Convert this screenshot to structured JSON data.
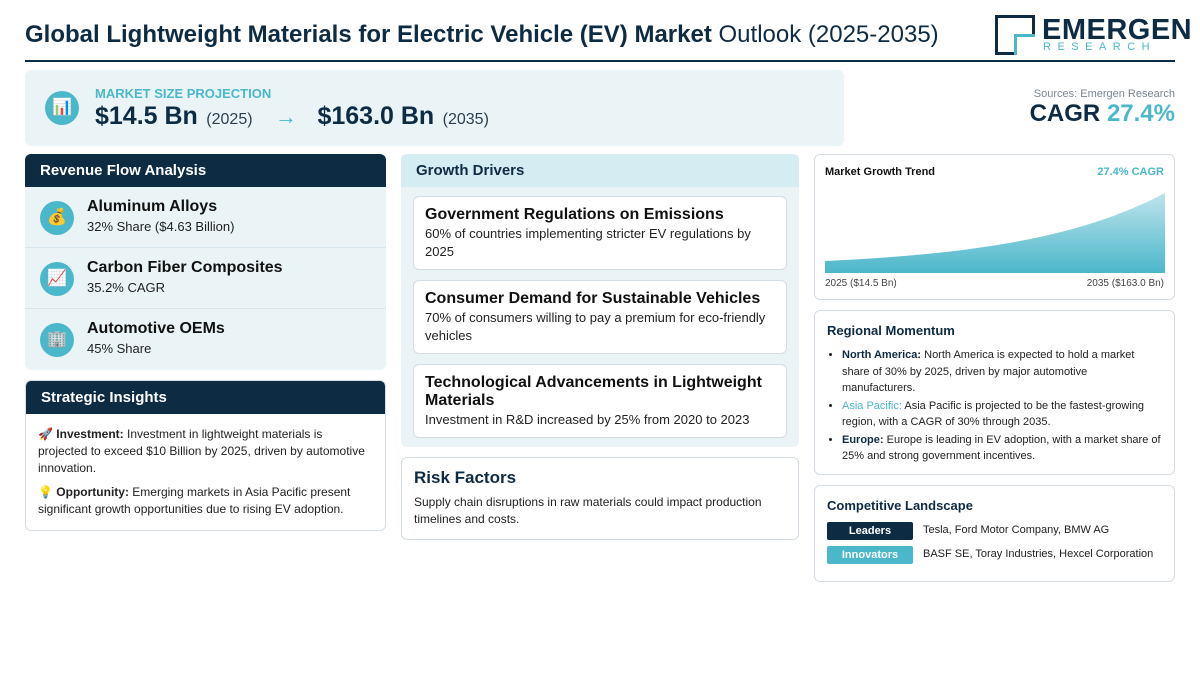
{
  "header": {
    "title_bold": "Global Lightweight Materials for Electric Vehicle (EV) Market",
    "title_rest": "Outlook (2025-2035)",
    "logo_name": "EMERGEN",
    "logo_sub": "RESEARCH"
  },
  "market": {
    "label": "MARKET SIZE PROJECTION",
    "icon": "bar-chart-icon",
    "start_value": "$14.5 Bn",
    "start_year": "(2025)",
    "arrow": "→",
    "end_value": "$163.0 Bn",
    "end_year": "(2035)"
  },
  "summary": {
    "sources": "Sources: Emergen Research",
    "cagr_label": "CAGR",
    "cagr_value": "27.4%"
  },
  "revenue": {
    "title": "Revenue Flow Analysis",
    "items": [
      {
        "icon": "money-bag-icon",
        "title": "Aluminum Alloys",
        "sub": "32% Share ($4.63 Billion)"
      },
      {
        "icon": "trend-chart-icon",
        "title": "Carbon Fiber Composites",
        "sub": "35.2% CAGR"
      },
      {
        "icon": "building-icon",
        "title": "Automotive OEMs",
        "sub": "45% Share"
      }
    ]
  },
  "insights": {
    "title": "Strategic Insights",
    "items": [
      {
        "icon": "rocket-icon",
        "label": "Investment:",
        "text": "Investment in lightweight materials is projected to exceed $10 Billion by 2025, driven by automotive innovation."
      },
      {
        "icon": "lightbulb-icon",
        "label": "Opportunity:",
        "text": "Emerging markets in Asia Pacific present significant growth opportunities due to rising EV adoption."
      }
    ]
  },
  "drivers": {
    "title": "Growth Drivers",
    "items": [
      {
        "title": "Government Regulations on Emissions",
        "desc": "60% of countries implementing stricter EV regulations by 2025"
      },
      {
        "title": "Consumer Demand for Sustainable Vehicles",
        "desc": "70% of consumers willing to pay a premium for eco-friendly vehicles"
      },
      {
        "title": "Technological Advancements in Lightweight Materials",
        "desc": "Investment in R&D increased by 25% from 2020 to 2023"
      }
    ]
  },
  "risk": {
    "title": "Risk Factors",
    "desc": "Supply chain disruptions in raw materials could impact production timelines and costs."
  },
  "trend": {
    "title": "Market Growth Trend",
    "cagr": "27.4% CAGR",
    "start_label": "2025 ($14.5 Bn)",
    "end_label": "2035 ($163.0 Bn)",
    "fill_color_top": "#bfe4ec",
    "fill_color_bottom": "#4bb7ca"
  },
  "chart_data": {
    "type": "area",
    "title": "Market Growth Trend",
    "x": [
      2025,
      2035
    ],
    "values": [
      14.5,
      163.0
    ],
    "unit": "Bn USD"
  },
  "regional": {
    "title": "Regional Momentum",
    "items": [
      {
        "label": "North America:",
        "text": "North America is expected to hold a market share of 30% by 2025, driven by major automotive manufacturers."
      },
      {
        "label": "Asia Pacific:",
        "text": "Asia Pacific is projected to be the fastest-growing region, with a CAGR of 30% through 2035."
      },
      {
        "label": "Europe:",
        "text": "Europe is leading in EV adoption, with a market share of 25% and strong government incentives."
      }
    ]
  },
  "competitive": {
    "title": "Competitive Landscape",
    "rows": [
      {
        "badge": "Leaders",
        "names": "Tesla, Ford Motor Company, BMW AG"
      },
      {
        "badge": "Innovators",
        "names": "BASF SE, Toray Industries, Hexcel Corporation"
      }
    ]
  },
  "colors": {
    "navy": "#0e2b44",
    "teal": "#4bb7ca",
    "panel_bg": "#eaf4f7"
  }
}
